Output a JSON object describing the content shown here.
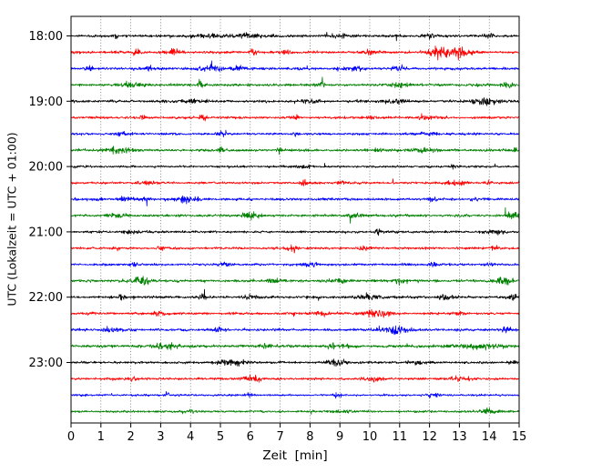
{
  "chart_data": {
    "type": "line",
    "subtype": "seismogram-helicorder",
    "title": "",
    "xlabel": "Zeit  [min]",
    "ylabel": "UTC (Lokalzeit = UTC + 01:00)",
    "xlim": [
      0,
      15
    ],
    "minutes_per_row": 15,
    "grid": "vertical-dotted",
    "x_ticks": [
      "0",
      "1",
      "2",
      "3",
      "4",
      "5",
      "6",
      "7",
      "8",
      "9",
      "10",
      "11",
      "12",
      "13",
      "14",
      "15"
    ],
    "colors_cycle": [
      "#000000",
      "#ff0000",
      "#0000ff",
      "#008000"
    ],
    "rows": [
      {
        "time": "18:00",
        "label": "18:00",
        "color": "#000000",
        "noise": 1.1,
        "events": [
          [
            1.5,
            2,
            0.05
          ],
          [
            4.5,
            1.5,
            0.4
          ],
          [
            6,
            1.2,
            0.5
          ],
          [
            9,
            1,
            0.3
          ],
          [
            12,
            1,
            0.2
          ],
          [
            14,
            1.5,
            0.1
          ]
        ]
      },
      {
        "time": "18:15",
        "label": "",
        "color": "#ff0000",
        "noise": 1.1,
        "events": [
          [
            2.2,
            2.5,
            0.1
          ],
          [
            3.4,
            2,
            0.15
          ],
          [
            6.1,
            3,
            0.07
          ],
          [
            7.2,
            1.5,
            0.1
          ],
          [
            10,
            1.5,
            0.2
          ],
          [
            12.5,
            5,
            0.35
          ],
          [
            13.1,
            3,
            0.2
          ]
        ]
      },
      {
        "time": "18:30",
        "label": "",
        "color": "#0000ff",
        "noise": 1.1,
        "events": [
          [
            0.6,
            3,
            0.06
          ],
          [
            2.6,
            2.5,
            0.08
          ],
          [
            4.7,
            2,
            0.3
          ],
          [
            5.6,
            3.5,
            0.1
          ],
          [
            9.5,
            1.5,
            0.2
          ],
          [
            11,
            1.5,
            0.15
          ]
        ]
      },
      {
        "time": "18:45",
        "label": "",
        "color": "#008000",
        "noise": 1.1,
        "events": [
          [
            2,
            2.5,
            0.25
          ],
          [
            4.3,
            2.5,
            0.12
          ],
          [
            8.3,
            1.5,
            0.2
          ],
          [
            11,
            2.5,
            0.2
          ],
          [
            14.6,
            2.5,
            0.15
          ]
        ]
      },
      {
        "time": "19:00",
        "label": "19:00",
        "color": "#000000",
        "noise": 1.1,
        "events": [
          [
            4,
            1.5,
            0.3
          ],
          [
            8,
            1.5,
            0.2
          ],
          [
            10.8,
            2,
            0.25
          ],
          [
            13.9,
            3.5,
            0.25
          ]
        ]
      },
      {
        "time": "19:15",
        "label": "",
        "color": "#ff0000",
        "noise": 1.0,
        "events": [
          [
            2.4,
            3,
            0.07
          ],
          [
            4.4,
            2.5,
            0.08
          ],
          [
            7.5,
            2.5,
            0.08
          ],
          [
            10,
            1.5,
            0.15
          ],
          [
            11.8,
            2,
            0.2
          ]
        ]
      },
      {
        "time": "19:30",
        "label": "",
        "color": "#0000ff",
        "noise": 1.0,
        "events": [
          [
            1.7,
            1.5,
            0.15
          ],
          [
            5,
            3.5,
            0.08
          ],
          [
            7.5,
            1.5,
            0.1
          ],
          [
            12,
            1.2,
            0.3
          ]
        ]
      },
      {
        "time": "19:45",
        "label": "",
        "color": "#008000",
        "noise": 1.1,
        "events": [
          [
            1.6,
            2.5,
            0.3
          ],
          [
            5,
            2.5,
            0.07
          ],
          [
            7,
            2,
            0.08
          ],
          [
            10.3,
            2.5,
            0.08
          ],
          [
            11.8,
            2,
            0.25
          ],
          [
            14.9,
            2,
            0.1
          ]
        ]
      },
      {
        "time": "20:00",
        "label": "20:00",
        "color": "#000000",
        "noise": 0.9,
        "events": [
          [
            7.8,
            1.5,
            0.15
          ],
          [
            12.8,
            2.5,
            0.08
          ]
        ]
      },
      {
        "time": "20:15",
        "label": "",
        "color": "#ff0000",
        "noise": 1.0,
        "events": [
          [
            2.5,
            1.5,
            0.2
          ],
          [
            7.8,
            3.5,
            0.07
          ],
          [
            9,
            1.5,
            0.1
          ],
          [
            12.9,
            2,
            0.25
          ],
          [
            14,
            1.5,
            0.1
          ]
        ]
      },
      {
        "time": "20:30",
        "label": "",
        "color": "#0000ff",
        "noise": 1.1,
        "events": [
          [
            1.8,
            2.5,
            0.15
          ],
          [
            2.5,
            2,
            0.1
          ],
          [
            3.9,
            3,
            0.25
          ],
          [
            12.1,
            2.5,
            0.08
          ],
          [
            13.5,
            1.5,
            0.1
          ]
        ]
      },
      {
        "time": "20:45",
        "label": "",
        "color": "#008000",
        "noise": 1.1,
        "events": [
          [
            1.5,
            1.5,
            0.2
          ],
          [
            6,
            3.5,
            0.2
          ],
          [
            9.5,
            2,
            0.15
          ],
          [
            14.8,
            3.5,
            0.15
          ]
        ]
      },
      {
        "time": "21:00",
        "label": "21:00",
        "color": "#000000",
        "noise": 1.0,
        "events": [
          [
            2,
            1.5,
            0.2
          ],
          [
            10.3,
            3.5,
            0.08
          ],
          [
            14.2,
            2.5,
            0.2
          ]
        ]
      },
      {
        "time": "21:15",
        "label": "",
        "color": "#ff0000",
        "noise": 1.0,
        "events": [
          [
            1.5,
            2,
            0.1
          ],
          [
            3,
            1.5,
            0.1
          ],
          [
            7.4,
            3,
            0.12
          ],
          [
            9.8,
            1.5,
            0.15
          ],
          [
            14.2,
            2.5,
            0.08
          ]
        ]
      },
      {
        "time": "21:30",
        "label": "",
        "color": "#0000ff",
        "noise": 1.0,
        "events": [
          [
            2.1,
            3,
            0.07
          ],
          [
            5.2,
            2,
            0.15
          ],
          [
            8,
            1.5,
            0.2
          ],
          [
            12.1,
            2,
            0.1
          ],
          [
            14,
            1.5,
            0.1
          ]
        ]
      },
      {
        "time": "21:45",
        "label": "",
        "color": "#008000",
        "noise": 1.1,
        "events": [
          [
            2.4,
            3,
            0.25
          ],
          [
            6.8,
            2,
            0.15
          ],
          [
            9,
            1.5,
            0.2
          ],
          [
            11,
            2,
            0.15
          ],
          [
            14.5,
            3,
            0.2
          ]
        ]
      },
      {
        "time": "22:00",
        "label": "22:00",
        "color": "#000000",
        "noise": 1.1,
        "events": [
          [
            1.7,
            2.5,
            0.08
          ],
          [
            4.4,
            2.5,
            0.08
          ],
          [
            6,
            1.5,
            0.2
          ],
          [
            10,
            2,
            0.3
          ],
          [
            12.5,
            2,
            0.15
          ],
          [
            14.8,
            2.5,
            0.1
          ]
        ]
      },
      {
        "time": "22:15",
        "label": "",
        "color": "#ff0000",
        "noise": 1.0,
        "events": [
          [
            3,
            1.5,
            0.2
          ],
          [
            8.3,
            2,
            0.2
          ],
          [
            10.2,
            4.5,
            0.3
          ],
          [
            13,
            1.5,
            0.15
          ]
        ]
      },
      {
        "time": "22:30",
        "label": "",
        "color": "#0000ff",
        "noise": 1.1,
        "events": [
          [
            1.3,
            2,
            0.2
          ],
          [
            5,
            1.5,
            0.2
          ],
          [
            10.9,
            4,
            0.3
          ],
          [
            14.5,
            2,
            0.15
          ]
        ]
      },
      {
        "time": "22:45",
        "label": "",
        "color": "#008000",
        "noise": 1.2,
        "events": [
          [
            3.2,
            2.5,
            0.3
          ],
          [
            6.5,
            1.5,
            0.2
          ],
          [
            8.8,
            2.5,
            0.1
          ],
          [
            9.2,
            2,
            0.1
          ],
          [
            13.5,
            2,
            0.6
          ]
        ]
      },
      {
        "time": "23:00",
        "label": "23:00",
        "color": "#000000",
        "noise": 1.0,
        "events": [
          [
            5.4,
            3.5,
            0.3
          ],
          [
            8.9,
            3.5,
            0.2
          ],
          [
            11.5,
            1.5,
            0.2
          ],
          [
            14.8,
            2,
            0.1
          ]
        ]
      },
      {
        "time": "23:15",
        "label": "",
        "color": "#ff0000",
        "noise": 1.0,
        "events": [
          [
            2,
            1.5,
            0.2
          ],
          [
            6,
            2.5,
            0.25
          ],
          [
            10.2,
            2,
            0.2
          ],
          [
            13,
            1.5,
            0.3
          ]
        ]
      },
      {
        "time": "23:30",
        "label": "",
        "color": "#0000ff",
        "noise": 0.9,
        "events": [
          [
            3.2,
            2.5,
            0.08
          ],
          [
            6,
            2,
            0.1
          ],
          [
            8.9,
            2.5,
            0.08
          ],
          [
            12,
            1.5,
            0.2
          ]
        ]
      },
      {
        "time": "23:45",
        "label": "",
        "color": "#008000",
        "noise": 0.9,
        "events": [
          [
            4,
            1.5,
            0.2
          ],
          [
            9,
            1.3,
            0.3
          ],
          [
            14,
            2.5,
            0.25
          ]
        ]
      }
    ]
  }
}
